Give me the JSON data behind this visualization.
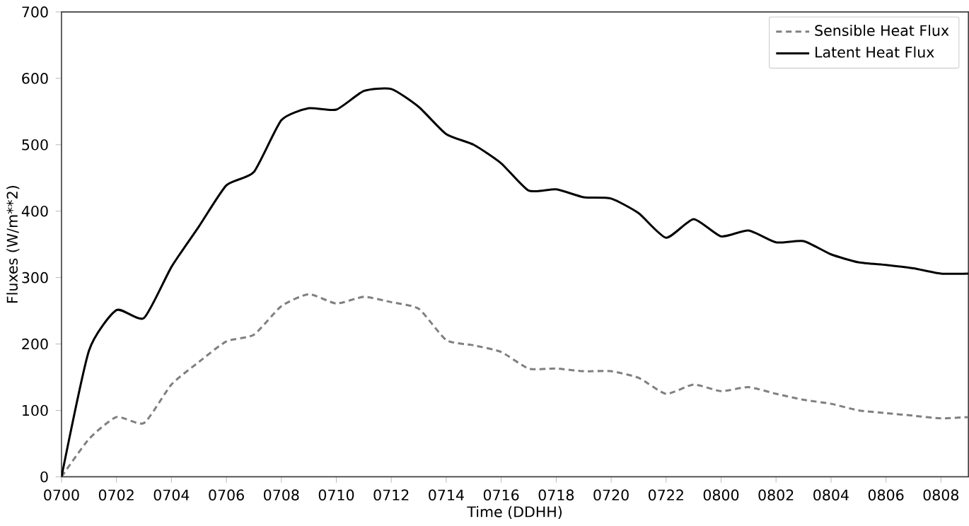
{
  "chart_data": {
    "type": "line",
    "xlabel": "Time (DDHH)",
    "ylabel": "Fluxes (W/m**2)",
    "categories": [
      "0700",
      null,
      "0702",
      null,
      "0704",
      null,
      "0706",
      null,
      "0708",
      null,
      "0710",
      null,
      "0712",
      null,
      "0714",
      null,
      "0716",
      null,
      "0718",
      null,
      "0720",
      null,
      "0722",
      null,
      "0800",
      null,
      "0802",
      null,
      "0804",
      null,
      "0806",
      null,
      "0808",
      null
    ],
    "series": [
      {
        "name": "Sensible Heat Flux",
        "color": "#808080",
        "line_style": "dashed",
        "values": [
          0,
          57,
          90,
          81,
          139,
          173,
          204,
          214,
          257,
          275,
          261,
          271,
          263,
          253,
          206,
          198,
          188,
          163,
          163,
          159,
          159,
          149,
          125,
          139,
          129,
          135,
          125,
          116,
          110,
          100,
          96,
          92,
          88,
          90
        ]
      },
      {
        "name": "Latent Heat Flux",
        "color": "#000000",
        "line_style": "solid",
        "values": [
          0,
          190,
          251,
          239,
          316,
          377,
          439,
          459,
          537,
          555,
          553,
          581,
          584,
          557,
          516,
          500,
          472,
          431,
          433,
          421,
          419,
          397,
          360,
          388,
          362,
          371,
          353,
          355,
          335,
          323,
          319,
          314,
          306,
          306
        ]
      }
    ],
    "ylim": [
      0,
      700
    ],
    "yticks": [
      0,
      100,
      200,
      300,
      400,
      500,
      600,
      700
    ],
    "legend": "top right",
    "grid": false,
    "marker": "none"
  }
}
